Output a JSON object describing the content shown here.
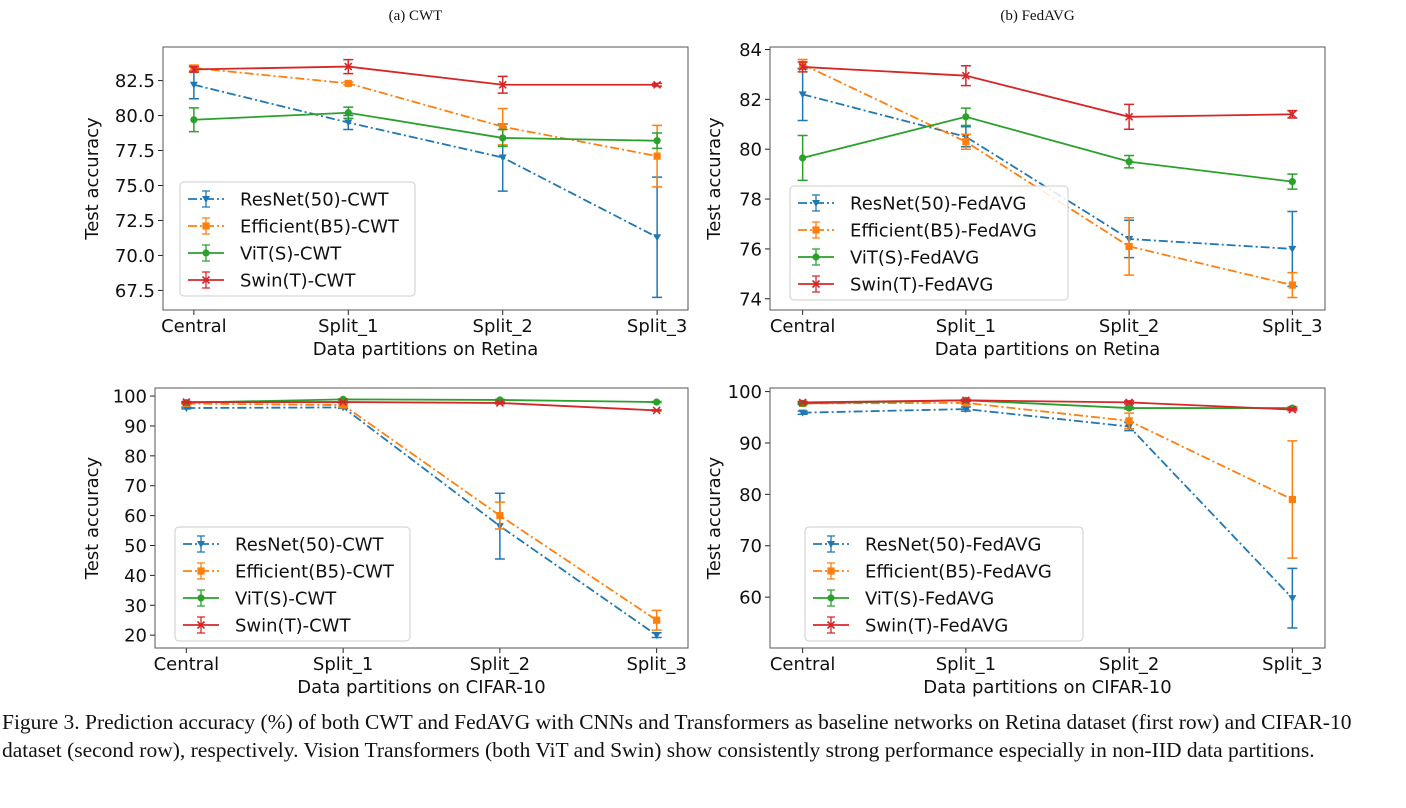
{
  "caption": "Figure 3. Prediction accuracy (%) of both CWT and FedAVG with CNNs and Transformers as baseline networks on Retina dataset (first row) and CIFAR-10 dataset (second row), respectively. Vision Transformers (both ViT and Swin) show consistently strong performance especially in non-IID data partitions.",
  "colors": {
    "ResNet": "#1f77b4",
    "Efficient": "#ff7f0e",
    "ViT": "#2ca02c",
    "Swin": "#d62728"
  },
  "chart_data": [
    {
      "type": "line",
      "title": "(a) CWT",
      "xlabel": "Data partitions on Retina",
      "ylabel": "Test accuracy",
      "categories": [
        "Central",
        "Split_1",
        "Split_2",
        "Split_3"
      ],
      "xlim": [
        -0.2,
        3.2
      ],
      "ylim": [
        66.1,
        84.9
      ],
      "yticks": [
        67.5,
        70.0,
        72.5,
        75.0,
        77.5,
        80.0,
        82.5
      ],
      "ytick_labels": [
        "67.5",
        "70.0",
        "72.5",
        "75.0",
        "77.5",
        "80.0",
        "82.5"
      ],
      "legend": "lower-left",
      "grid": false,
      "series": [
        {
          "name": "ResNet(50)-CWT",
          "model": "ResNet",
          "style": "dashdot",
          "marker": "triangle-down",
          "values": [
            82.2,
            79.5,
            77.0,
            71.3
          ],
          "err": [
            1.0,
            0.5,
            2.4,
            4.3
          ]
        },
        {
          "name": "Efficient(B5)-CWT",
          "model": "Efficient",
          "style": "dashdot",
          "marker": "square",
          "values": [
            83.4,
            82.3,
            79.2,
            77.1
          ],
          "err": [
            0.2,
            0.1,
            1.3,
            2.2
          ]
        },
        {
          "name": "ViT(S)-CWT",
          "model": "ViT",
          "style": "solid",
          "marker": "circle",
          "values": [
            79.7,
            80.2,
            78.4,
            78.2
          ],
          "err": [
            0.85,
            0.4,
            0.6,
            0.55
          ]
        },
        {
          "name": "Swin(T)-CWT",
          "model": "Swin",
          "style": "solid",
          "marker": "x",
          "values": [
            83.3,
            83.5,
            82.2,
            82.2
          ],
          "err": [
            0.2,
            0.5,
            0.6,
            0.1
          ]
        }
      ]
    },
    {
      "type": "line",
      "title": "(b) FedAVG",
      "xlabel": "Data partitions on Retina",
      "ylabel": "Test accuracy",
      "categories": [
        "Central",
        "Split_1",
        "Split_2",
        "Split_3"
      ],
      "xlim": [
        -0.2,
        3.2
      ],
      "ylim": [
        73.55,
        84.1
      ],
      "yticks": [
        74,
        76,
        78,
        80,
        82,
        84
      ],
      "ytick_labels": [
        "74",
        "76",
        "78",
        "80",
        "82",
        "84"
      ],
      "legend": "lower-left",
      "grid": false,
      "series": [
        {
          "name": "ResNet(50)-FedAVG",
          "model": "ResNet",
          "style": "dashdot",
          "marker": "triangle-down",
          "values": [
            82.2,
            80.5,
            76.4,
            76.0
          ],
          "err": [
            1.05,
            0.4,
            0.75,
            1.5
          ]
        },
        {
          "name": "Efficient(B5)-FedAVG",
          "model": "Efficient",
          "style": "dashdot",
          "marker": "square",
          "values": [
            83.4,
            80.3,
            76.1,
            74.55
          ],
          "err": [
            0.2,
            0.3,
            1.15,
            0.5
          ]
        },
        {
          "name": "ViT(S)-FedAVG",
          "model": "ViT",
          "style": "solid",
          "marker": "circle",
          "values": [
            79.65,
            81.3,
            79.5,
            78.7
          ],
          "err": [
            0.9,
            0.35,
            0.25,
            0.3
          ]
        },
        {
          "name": "Swin(T)-FedAVG",
          "model": "Swin",
          "style": "solid",
          "marker": "x",
          "values": [
            83.3,
            82.95,
            81.3,
            81.4
          ],
          "err": [
            0.2,
            0.4,
            0.5,
            0.15
          ]
        }
      ]
    },
    {
      "type": "line",
      "title": "",
      "xlabel": "Data partitions on CIFAR-10",
      "ylabel": "Test accuracy",
      "categories": [
        "Central",
        "Split_1",
        "Split_2",
        "Split_3"
      ],
      "xlim": [
        -0.2,
        3.2
      ],
      "ylim": [
        15.7,
        102.7
      ],
      "yticks": [
        20,
        30,
        40,
        50,
        60,
        70,
        80,
        90,
        100
      ],
      "ytick_labels": [
        "20",
        "30",
        "40",
        "50",
        "60",
        "70",
        "80",
        "90",
        "100"
      ],
      "legend": "lower-left",
      "grid": false,
      "series": [
        {
          "name": "ResNet(50)-CWT",
          "model": "ResNet",
          "style": "dashdot",
          "marker": "triangle-down",
          "values": [
            96.0,
            96.2,
            56.5,
            20.0
          ],
          "err": [
            0.3,
            0.3,
            11.0,
            0.8
          ]
        },
        {
          "name": "Efficient(B5)-CWT",
          "model": "Efficient",
          "style": "dashdot",
          "marker": "square",
          "values": [
            97.5,
            97.0,
            60.0,
            25.0
          ],
          "err": [
            0.3,
            0.4,
            4.5,
            3.3
          ]
        },
        {
          "name": "ViT(S)-CWT",
          "model": "ViT",
          "style": "solid",
          "marker": "circle",
          "values": [
            97.8,
            98.9,
            98.7,
            98.0
          ],
          "err": [
            0.2,
            0.2,
            0.2,
            0.2
          ]
        },
        {
          "name": "Swin(T)-CWT",
          "model": "Swin",
          "style": "solid",
          "marker": "x",
          "values": [
            98.0,
            98.0,
            97.7,
            95.2
          ],
          "err": [
            0.2,
            0.2,
            0.3,
            0.2
          ]
        }
      ]
    },
    {
      "type": "line",
      "title": "",
      "xlabel": "Data partitions on CIFAR-10",
      "ylabel": "Test accuracy",
      "categories": [
        "Central",
        "Split_1",
        "Split_2",
        "Split_3"
      ],
      "xlim": [
        -0.2,
        3.2
      ],
      "ylim": [
        50.1,
        100.7
      ],
      "yticks": [
        60,
        70,
        80,
        90,
        100
      ],
      "ytick_labels": [
        "60",
        "70",
        "80",
        "90",
        "100"
      ],
      "legend": "lower-left",
      "grid": false,
      "series": [
        {
          "name": "ResNet(50)-FedAVG",
          "model": "ResNet",
          "style": "dashdot",
          "marker": "triangle-down",
          "values": [
            95.9,
            96.6,
            93.2,
            59.8
          ],
          "err": [
            0.3,
            0.4,
            0.8,
            5.8
          ]
        },
        {
          "name": "Efficient(B5)-FedAVG",
          "model": "Efficient",
          "style": "dashdot",
          "marker": "square",
          "values": [
            97.7,
            97.8,
            94.3,
            79.0
          ],
          "err": [
            0.2,
            0.3,
            1.5,
            11.4
          ]
        },
        {
          "name": "ViT(S)-FedAVG",
          "model": "ViT",
          "style": "solid",
          "marker": "circle",
          "values": [
            97.7,
            98.3,
            96.8,
            96.8
          ],
          "err": [
            0.2,
            0.2,
            0.2,
            0.2
          ]
        },
        {
          "name": "Swin(T)-FedAVG",
          "model": "Swin",
          "style": "solid",
          "marker": "x",
          "values": [
            97.9,
            98.3,
            97.9,
            96.5
          ],
          "err": [
            0.2,
            0.2,
            0.3,
            0.2
          ]
        }
      ]
    }
  ]
}
